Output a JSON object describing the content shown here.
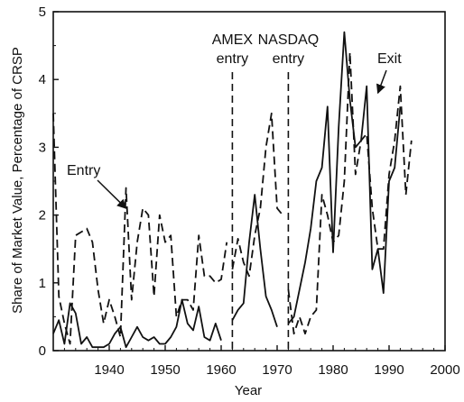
{
  "chart_data": {
    "type": "line",
    "title": "",
    "xlabel": "Year",
    "ylabel": "Share of Market Value, Percentage of CRSP",
    "xlim": [
      1930,
      2000
    ],
    "ylim": [
      0,
      5
    ],
    "xticks": [
      1940,
      1950,
      1960,
      1970,
      1980,
      1990,
      2000
    ],
    "yticks": [
      0,
      1,
      2,
      3,
      4,
      5
    ],
    "grid": false,
    "legend": "none",
    "series": [
      {
        "line_style": "dashed",
        "color": "#111111",
        "segments": [
          [
            [
              1930,
              3.5
            ],
            [
              1931,
              0.8
            ],
            [
              1932,
              0.4
            ],
            [
              1933,
              0.1
            ],
            [
              1934,
              1.7
            ],
            [
              1935,
              1.75
            ],
            [
              1936,
              1.8
            ],
            [
              1937,
              1.6
            ],
            [
              1938,
              0.9
            ],
            [
              1939,
              0.4
            ],
            [
              1940,
              0.75
            ],
            [
              1941,
              0.5
            ],
            [
              1942,
              0.2
            ],
            [
              1943,
              2.4
            ],
            [
              1944,
              0.75
            ],
            [
              1945,
              1.6
            ],
            [
              1946,
              2.1
            ],
            [
              1947,
              2.0
            ],
            [
              1948,
              0.8
            ],
            [
              1949,
              2.0
            ],
            [
              1950,
              1.6
            ],
            [
              1951,
              1.7
            ],
            [
              1952,
              0.5
            ],
            [
              1953,
              0.75
            ],
            [
              1954,
              0.75
            ],
            [
              1955,
              0.6
            ],
            [
              1956,
              1.7
            ],
            [
              1957,
              1.1
            ],
            [
              1958,
              1.1
            ],
            [
              1959,
              1.0
            ],
            [
              1960,
              1.05
            ],
            [
              1961,
              1.6
            ]
          ],
          [
            [
              1962,
              1.2
            ],
            [
              1963,
              1.65
            ],
            [
              1964,
              1.3
            ],
            [
              1965,
              1.1
            ],
            [
              1966,
              1.7
            ],
            [
              1967,
              2.1
            ],
            [
              1968,
              3.0
            ],
            [
              1969,
              3.5
            ],
            [
              1970,
              2.1
            ],
            [
              1971,
              2.0
            ]
          ],
          [
            [
              1972,
              0.9
            ],
            [
              1973,
              0.25
            ],
            [
              1974,
              0.5
            ],
            [
              1975,
              0.25
            ],
            [
              1976,
              0.5
            ],
            [
              1977,
              0.6
            ],
            [
              1978,
              2.3
            ],
            [
              1979,
              2.0
            ],
            [
              1980,
              1.6
            ],
            [
              1981,
              1.7
            ],
            [
              1982,
              2.5
            ],
            [
              1983,
              4.4
            ],
            [
              1984,
              2.6
            ],
            [
              1985,
              3.1
            ],
            [
              1986,
              3.2
            ],
            [
              1987,
              2.1
            ],
            [
              1988,
              1.5
            ],
            [
              1989,
              1.5
            ],
            [
              1990,
              2.6
            ],
            [
              1991,
              3.1
            ],
            [
              1992,
              3.9
            ],
            [
              1993,
              2.3
            ],
            [
              1994,
              3.1
            ]
          ]
        ]
      },
      {
        "line_style": "solid",
        "color": "#111111",
        "segments": [
          [
            [
              1930,
              0.25
            ],
            [
              1931,
              0.45
            ],
            [
              1932,
              0.1
            ],
            [
              1933,
              0.7
            ],
            [
              1934,
              0.55
            ],
            [
              1935,
              0.1
            ],
            [
              1936,
              0.2
            ],
            [
              1937,
              0.05
            ],
            [
              1938,
              0.05
            ],
            [
              1939,
              0.05
            ],
            [
              1940,
              0.1
            ],
            [
              1941,
              0.25
            ],
            [
              1942,
              0.35
            ],
            [
              1943,
              0.05
            ],
            [
              1944,
              0.2
            ],
            [
              1945,
              0.35
            ],
            [
              1946,
              0.2
            ],
            [
              1947,
              0.15
            ],
            [
              1948,
              0.2
            ],
            [
              1949,
              0.1
            ],
            [
              1950,
              0.1
            ],
            [
              1951,
              0.2
            ],
            [
              1952,
              0.35
            ],
            [
              1953,
              0.75
            ],
            [
              1954,
              0.4
            ],
            [
              1955,
              0.3
            ],
            [
              1956,
              0.65
            ],
            [
              1957,
              0.2
            ],
            [
              1958,
              0.15
            ],
            [
              1959,
              0.4
            ],
            [
              1960,
              0.15
            ]
          ],
          [
            [
              1962,
              0.45
            ],
            [
              1963,
              0.6
            ],
            [
              1964,
              0.7
            ],
            [
              1965,
              1.6
            ],
            [
              1966,
              2.3
            ],
            [
              1967,
              1.5
            ],
            [
              1968,
              0.8
            ],
            [
              1969,
              0.6
            ],
            [
              1970,
              0.35
            ]
          ],
          [
            [
              1972,
              0.4
            ],
            [
              1973,
              0.5
            ],
            [
              1974,
              0.9
            ],
            [
              1975,
              1.3
            ],
            [
              1976,
              1.8
            ],
            [
              1977,
              2.5
            ],
            [
              1978,
              2.7
            ],
            [
              1979,
              3.6
            ],
            [
              1980,
              1.45
            ],
            [
              1981,
              3.3
            ],
            [
              1982,
              4.7
            ],
            [
              1983,
              3.7
            ],
            [
              1984,
              3.0
            ],
            [
              1985,
              3.1
            ],
            [
              1986,
              3.9
            ],
            [
              1987,
              1.2
            ],
            [
              1988,
              1.5
            ],
            [
              1989,
              0.85
            ],
            [
              1990,
              2.5
            ],
            [
              1991,
              2.7
            ],
            [
              1992,
              3.6
            ]
          ]
        ]
      }
    ],
    "reference_lines": [
      {
        "x": 1962,
        "style": "dashed",
        "label_lines": [
          "AMEX",
          "entry"
        ]
      },
      {
        "x": 1972,
        "style": "dashed",
        "label_lines": [
          "NASDAQ",
          "entry"
        ]
      }
    ],
    "annotations": [
      {
        "text": "Entry",
        "arrow_to": [
          1943,
          2.1
        ]
      },
      {
        "text": "Exit",
        "arrow_to": [
          1988,
          3.8
        ]
      }
    ]
  }
}
